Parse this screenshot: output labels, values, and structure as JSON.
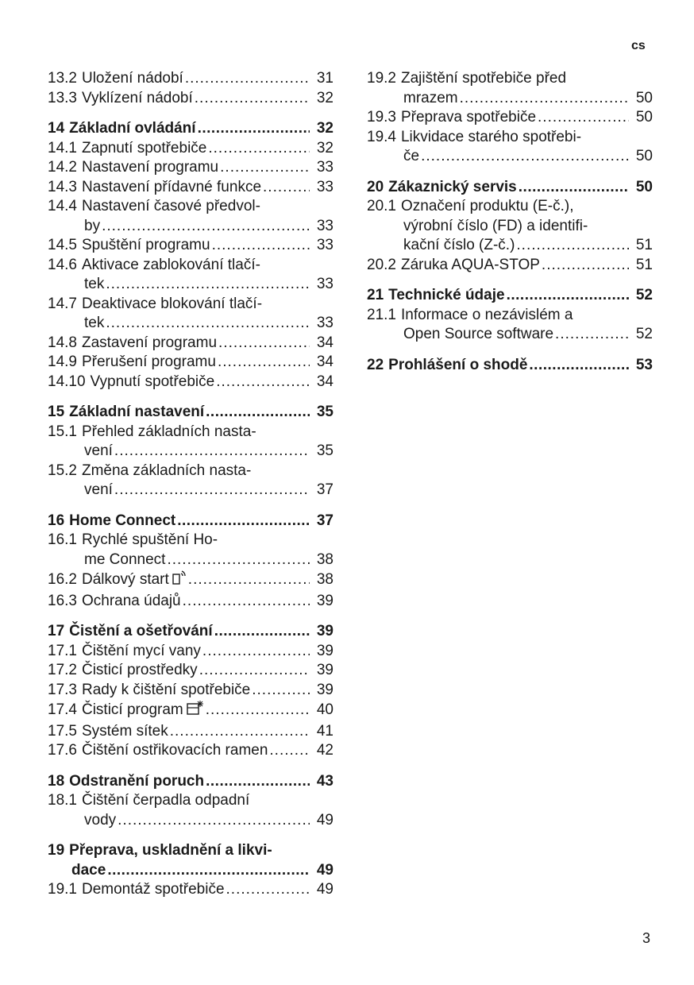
{
  "header": {
    "language": "cs"
  },
  "footer": {
    "page_number": "3"
  },
  "toc": {
    "left": [
      {
        "num": "13.2",
        "lines": [
          "Uložení nádobí"
        ],
        "page": "31"
      },
      {
        "num": "13.3",
        "lines": [
          "Vyklízení nádobí"
        ],
        "page": "32"
      },
      {
        "num": "14",
        "lines": [
          "Základní ovládání"
        ],
        "page": "32",
        "bold": true
      },
      {
        "num": "14.1",
        "lines": [
          "Zapnutí spotřebiče"
        ],
        "page": "32"
      },
      {
        "num": "14.2",
        "lines": [
          "Nastavení programu"
        ],
        "page": "33"
      },
      {
        "num": "14.3",
        "lines": [
          "Nastavení přídavné funkce"
        ],
        "page": "33"
      },
      {
        "num": "14.4",
        "lines": [
          "Nastavení časové předvol-",
          "by"
        ],
        "page": "33"
      },
      {
        "num": "14.5",
        "lines": [
          "Spuštění programu"
        ],
        "page": "33"
      },
      {
        "num": "14.6",
        "lines": [
          "Aktivace zablokování tlačí-",
          "tek"
        ],
        "page": "33"
      },
      {
        "num": "14.7",
        "lines": [
          "Deaktivace blokování tlačí-",
          "tek"
        ],
        "page": "33"
      },
      {
        "num": "14.8",
        "lines": [
          "Zastavení programu"
        ],
        "page": "34"
      },
      {
        "num": "14.9",
        "lines": [
          "Přerušení programu"
        ],
        "page": "34"
      },
      {
        "num": "14.10",
        "lines": [
          "Vypnutí spotřebiče"
        ],
        "page": "34"
      },
      {
        "num": "15",
        "lines": [
          "Základní nastavení"
        ],
        "page": "35",
        "bold": true
      },
      {
        "num": "15.1",
        "lines": [
          "Přehled základních nasta-",
          "vení"
        ],
        "page": "35"
      },
      {
        "num": "15.2",
        "lines": [
          "Změna základních nasta-",
          "vení"
        ],
        "page": "37"
      },
      {
        "num": "16",
        "lines": [
          "Home Connect"
        ],
        "page": "37",
        "bold": true
      },
      {
        "num": "16.1",
        "lines": [
          "Rychlé spuštění Ho-",
          "me Connect"
        ],
        "page": "38"
      },
      {
        "num": "16.2",
        "lines": [
          "Dálkový start"
        ],
        "page": "38",
        "icon": "remote-start-icon"
      },
      {
        "num": "16.3",
        "lines": [
          "Ochrana údajů"
        ],
        "page": "39"
      },
      {
        "num": "17",
        "lines": [
          "Čistění a ošetřování"
        ],
        "page": "39",
        "bold": true
      },
      {
        "num": "17.1",
        "lines": [
          "Čištění mycí vany"
        ],
        "page": "39"
      },
      {
        "num": "17.2",
        "lines": [
          "Čisticí prostředky"
        ],
        "page": "39"
      },
      {
        "num": "17.3",
        "lines": [
          "Rady k čištění spotřebiče"
        ],
        "page": "39"
      },
      {
        "num": "17.4",
        "lines": [
          "Čisticí program"
        ],
        "page": "40",
        "icon": "machine-care-icon"
      },
      {
        "num": "17.5",
        "lines": [
          "Systém sítek"
        ],
        "page": "41"
      },
      {
        "num": "17.6",
        "lines": [
          "Čištění ostřikovacích ramen"
        ],
        "page": "42"
      },
      {
        "num": "18",
        "lines": [
          "Odstranění poruch"
        ],
        "page": "43",
        "bold": true
      },
      {
        "num": "18.1",
        "lines": [
          "Čištění čerpadla odpadní",
          "vody"
        ],
        "page": "49"
      },
      {
        "num": "19",
        "lines": [
          "Přeprava, uskladnění a likvi-",
          "dace"
        ],
        "page": "49",
        "bold": true
      },
      {
        "num": "19.1",
        "lines": [
          "Demontáž spotřebiče"
        ],
        "page": "49"
      }
    ],
    "right": [
      {
        "num": "19.2",
        "lines": [
          "Zajištění spotřebiče před",
          "mrazem"
        ],
        "page": "50"
      },
      {
        "num": "19.3",
        "lines": [
          "Přeprava spotřebiče"
        ],
        "page": "50"
      },
      {
        "num": "19.4",
        "lines": [
          "Likvidace starého spotřebi-",
          "če"
        ],
        "page": "50"
      },
      {
        "num": "20",
        "lines": [
          "Zákaznický servis"
        ],
        "page": "50",
        "bold": true
      },
      {
        "num": "20.1",
        "lines": [
          "Označení produktu (E-č.),",
          "výrobní číslo (FD) a identifi-",
          "kační číslo (Z-č.)"
        ],
        "page": "51"
      },
      {
        "num": "20.2",
        "lines": [
          "Záruka AQUA-STOP"
        ],
        "page": "51"
      },
      {
        "num": "21",
        "lines": [
          "Technické údaje"
        ],
        "page": "52",
        "bold": true
      },
      {
        "num": "21.1",
        "lines": [
          "Informace o nezávislém a",
          "Open Source software"
        ],
        "page": "52"
      },
      {
        "num": "22",
        "lines": [
          "Prohlášení o shodě"
        ],
        "page": "53",
        "bold": true
      }
    ]
  }
}
